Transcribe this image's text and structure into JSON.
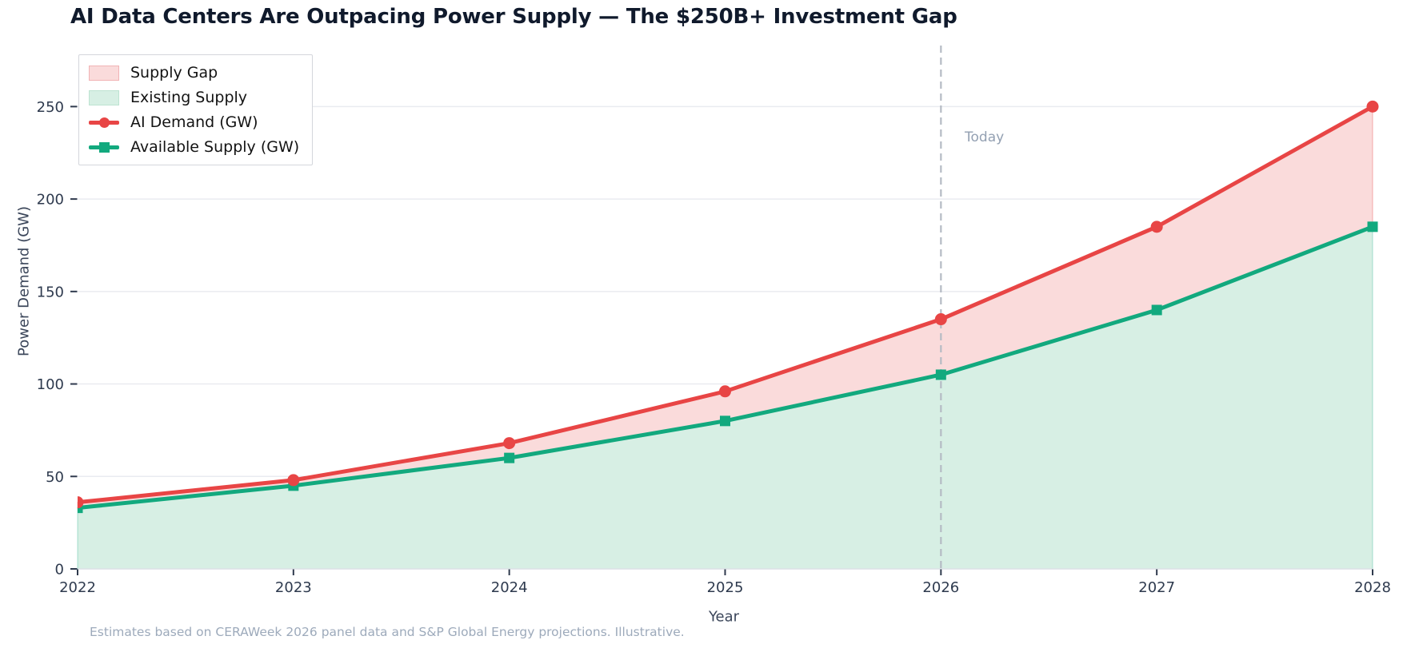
{
  "title": "AI Data Centers Are Outpacing Power Supply — The $250B+ Investment Gap",
  "footnote": "Estimates based on CERAWeek 2026 panel data and S&P Global Energy projections. Illustrative.",
  "legend": {
    "items": [
      {
        "label": "Supply Gap",
        "swatch": "patch",
        "fill": "#fadbdb",
        "edge": "#f1b3b5"
      },
      {
        "label": "Existing Supply",
        "swatch": "patch",
        "fill": "#d7efe4",
        "edge": "#bde3d1"
      },
      {
        "label": "AI Demand (GW)",
        "swatch": "line-circle",
        "color": "#e84545"
      },
      {
        "label": "Available Supply (GW)",
        "swatch": "line-square",
        "color": "#12a97e"
      }
    ]
  },
  "chart_data": {
    "type": "area",
    "x": [
      2022,
      2023,
      2024,
      2025,
      2026,
      2027,
      2028
    ],
    "series": [
      {
        "name": "AI Demand (GW)",
        "values": [
          36,
          48,
          68,
          96,
          135,
          185,
          250
        ],
        "color": "#e84545",
        "marker": "circle",
        "area_label": "Supply Gap",
        "area_fill": "#fadbdb"
      },
      {
        "name": "Available Supply (GW)",
        "values": [
          33,
          45,
          60,
          80,
          105,
          140,
          185
        ],
        "color": "#12a97e",
        "marker": "square",
        "area_label": "Existing Supply",
        "area_fill": "#d7efe4"
      }
    ],
    "title": "AI Data Centers Are Outpacing Power Supply — The $250B+ Investment Gap",
    "xlabel": "Year",
    "ylabel": "Power Demand (GW)",
    "yticks": [
      0,
      50,
      100,
      150,
      200,
      250
    ],
    "xticks": [
      "2022",
      "2023",
      "2024",
      "2025",
      "2026",
      "2027",
      "2028"
    ],
    "ylim": [
      0,
      283
    ],
    "xlim": [
      2022,
      2028
    ],
    "grid": true,
    "legend_position": "upper-left",
    "vline": {
      "x": 2026,
      "label": "Today",
      "style": "dashed",
      "color": "#b5bbc4"
    }
  },
  "colors": {
    "demand_line": "#e84545",
    "supply_line": "#12a97e",
    "gap_fill": "#fadbdb",
    "supply_fill": "#d7efe4",
    "gridline": "#e9ebf0",
    "spine": "#dfe2e8",
    "tick_text": "#2e3a4e",
    "title_text": "#101a2c",
    "muted_text": "#9daabb"
  }
}
